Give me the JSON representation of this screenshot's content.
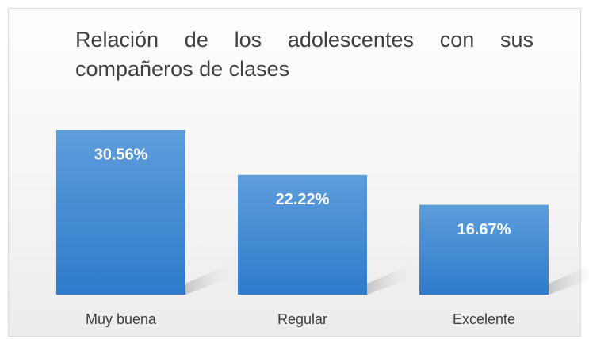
{
  "chart_data": {
    "type": "bar",
    "title": "Relación de los adolescentes con sus compañeros de clases",
    "categories": [
      "Muy buena",
      "Regular",
      "Excelente"
    ],
    "values": [
      30.56,
      22.22,
      16.67
    ],
    "value_labels": [
      "30.56%",
      "22.22%",
      "16.67%"
    ],
    "color": "#3d85cf"
  }
}
